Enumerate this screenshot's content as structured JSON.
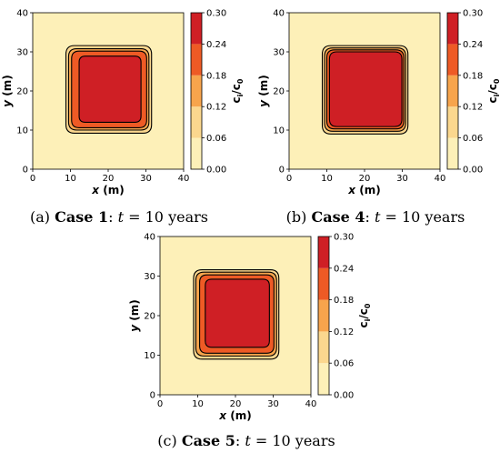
{
  "colors": {
    "level_0": "#fdf0b8",
    "level_1": "#fbd78e",
    "level_2": "#f7a44c",
    "level_3": "#ee5a25",
    "level_4": "#cf1f25",
    "level_5": "#b5121b",
    "contour": "#000000"
  },
  "chart_data": [
    {
      "type": "heatmap",
      "caption": {
        "label": "(a)",
        "case": "Case 1",
        "sep": ":",
        "var": "t",
        "eq": "= 10 years"
      },
      "xlabel": {
        "var": "x",
        "unit": "(m)"
      },
      "ylabel": {
        "var": "y",
        "unit": "(m)"
      },
      "xlim": [
        0,
        40
      ],
      "ylim": [
        0,
        40
      ],
      "xticks": [
        "0",
        "10",
        "20",
        "30",
        "40"
      ],
      "yticks": [
        "0",
        "10",
        "20",
        "30",
        "40"
      ],
      "colorbar": {
        "label": "c/c0",
        "range": [
          0,
          0.3
        ],
        "ticks": [
          "0.00",
          "0.06",
          "0.12",
          "0.18",
          "0.24",
          "0.30"
        ]
      },
      "contours": [
        {
          "level": 0.02,
          "x": [
            8.8,
            31.5
          ],
          "y": [
            9.2,
            31.6
          ]
        },
        {
          "level": 0.08,
          "x": [
            9.5,
            30.8
          ],
          "y": [
            10.0,
            30.8
          ]
        },
        {
          "level": 0.14,
          "x": [
            10.3,
            30.2
          ],
          "y": [
            10.6,
            30.2
          ]
        },
        {
          "level": 0.2,
          "x": [
            12.3,
            28.7
          ],
          "y": [
            12.0,
            28.9
          ]
        }
      ]
    },
    {
      "type": "heatmap",
      "caption": {
        "label": "(b)",
        "case": "Case 4",
        "sep": ":",
        "var": "t",
        "eq": "= 10 years"
      },
      "xlabel": {
        "var": "x",
        "unit": "(m)"
      },
      "ylabel": {
        "var": "y",
        "unit": "(m)"
      },
      "xlim": [
        0,
        40
      ],
      "ylim": [
        0,
        40
      ],
      "xticks": [
        "0",
        "10",
        "20",
        "30",
        "40"
      ],
      "yticks": [
        "0",
        "10",
        "20",
        "30",
        "40"
      ],
      "colorbar": {
        "label": "c/c0",
        "range": [
          0,
          0.3
        ],
        "ticks": [
          "0.00",
          "0.06",
          "0.12",
          "0.18",
          "0.24",
          "0.30"
        ]
      },
      "contours": [
        {
          "level": 0.02,
          "x": [
            8.8,
            31.5
          ],
          "y": [
            9.0,
            31.6
          ]
        },
        {
          "level": 0.08,
          "x": [
            9.4,
            30.9
          ],
          "y": [
            9.7,
            31.0
          ]
        },
        {
          "level": 0.14,
          "x": [
            10.0,
            30.4
          ],
          "y": [
            10.3,
            30.5
          ]
        },
        {
          "level": 0.2,
          "x": [
            10.7,
            29.9
          ],
          "y": [
            10.9,
            30.0
          ]
        }
      ]
    },
    {
      "type": "heatmap",
      "caption": {
        "label": "(c)",
        "case": "Case 5",
        "sep": ":",
        "var": "t",
        "eq": "= 10 years"
      },
      "xlabel": {
        "var": "x",
        "unit": "(m)"
      },
      "ylabel": {
        "var": "y",
        "unit": "(m)"
      },
      "xlim": [
        0,
        40
      ],
      "ylim": [
        0,
        40
      ],
      "xticks": [
        "0",
        "10",
        "20",
        "30",
        "40"
      ],
      "yticks": [
        "0",
        "10",
        "20",
        "30",
        "40"
      ],
      "colorbar": {
        "label": "c/c0",
        "range": [
          0,
          0.3
        ],
        "ticks": [
          "0.00",
          "0.06",
          "0.12",
          "0.18",
          "0.24",
          "0.30"
        ]
      },
      "contours": [
        {
          "level": 0.02,
          "x": [
            8.9,
            31.5
          ],
          "y": [
            9.0,
            31.6
          ]
        },
        {
          "level": 0.08,
          "x": [
            9.5,
            30.9
          ],
          "y": [
            9.8,
            31.0
          ]
        },
        {
          "level": 0.14,
          "x": [
            10.5,
            30.2
          ],
          "y": [
            10.5,
            30.3
          ]
        },
        {
          "level": 0.2,
          "x": [
            12.0,
            29.0
          ],
          "y": [
            12.0,
            29.2
          ]
        }
      ]
    }
  ]
}
